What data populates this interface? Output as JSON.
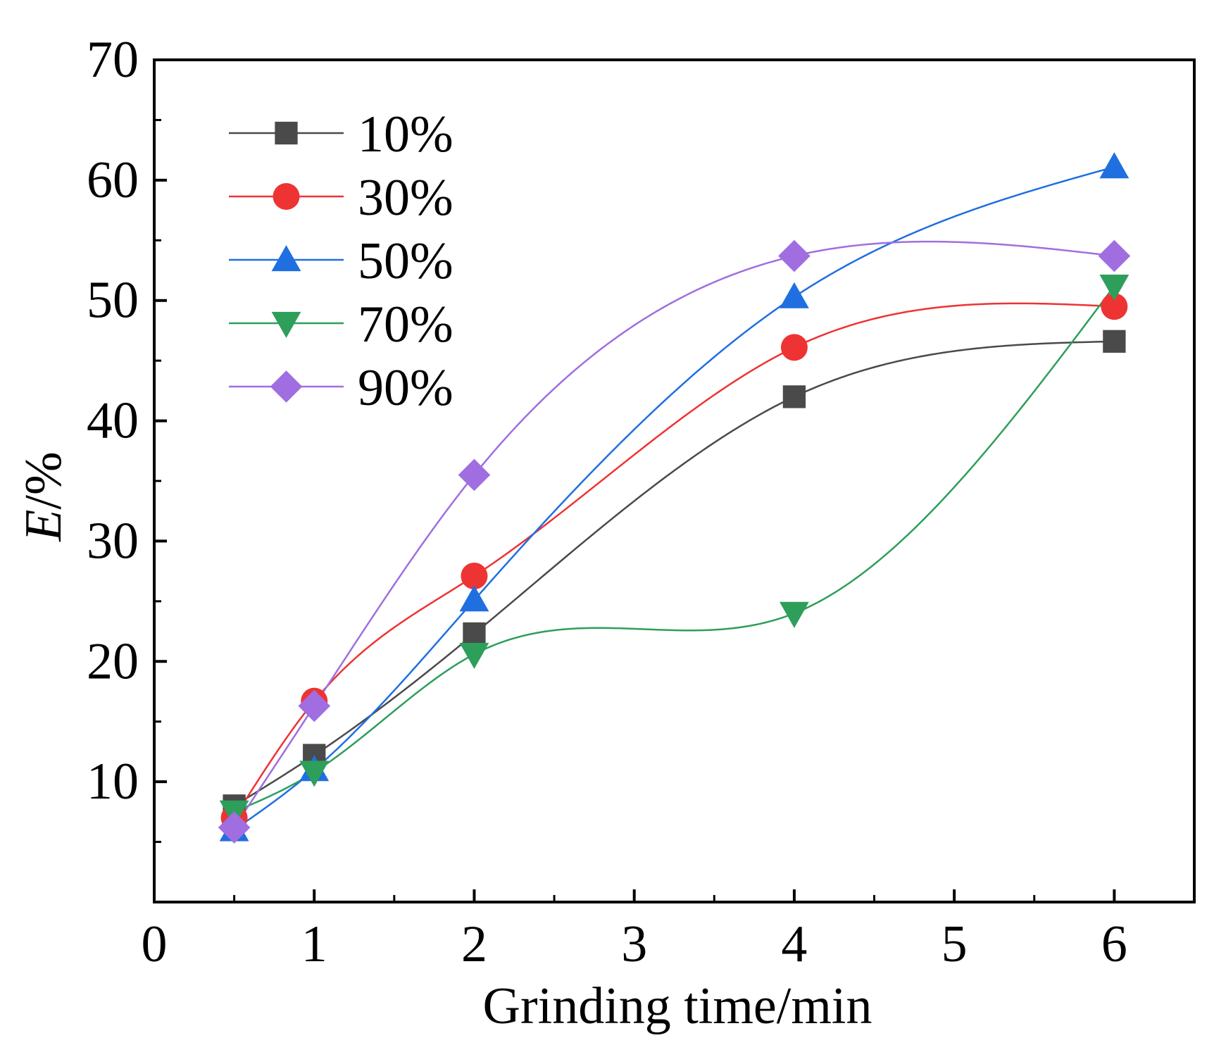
{
  "chart_data": {
    "type": "line",
    "smoothed": true,
    "title": "",
    "xlabel": "Grinding time/min",
    "ylabel_italic": "E",
    "ylabel_rest": "/%",
    "xlim": [
      0,
      6.5
    ],
    "ylim": [
      0,
      70
    ],
    "xticks": [
      0,
      1,
      2,
      3,
      4,
      5,
      6
    ],
    "xtick_labels": [
      "0",
      "1",
      "2",
      "3",
      "4",
      "5",
      "6"
    ],
    "yticks": [
      10,
      20,
      30,
      40,
      50,
      60,
      70
    ],
    "ytick_labels": [
      "10",
      "20",
      "30",
      "40",
      "50",
      "60",
      "70"
    ],
    "grid": false,
    "legend_position": "top-left",
    "x": [
      0.5,
      1,
      2,
      4,
      6
    ],
    "series": [
      {
        "name": "10%",
        "marker": "square",
        "color": "#4a4a4a",
        "values": [
          8.0,
          12.2,
          22.3,
          42.0,
          46.6
        ]
      },
      {
        "name": "30%",
        "marker": "circle",
        "color": "#ee3333",
        "values": [
          7.0,
          16.7,
          27.1,
          46.1,
          49.5
        ]
      },
      {
        "name": "50%",
        "marker": "triangle-up",
        "color": "#1f6fe0",
        "values": [
          6.0,
          11.0,
          25.1,
          50.3,
          61.1
        ]
      },
      {
        "name": "70%",
        "marker": "triangle-down",
        "color": "#2e9e5b",
        "values": [
          7.5,
          10.8,
          20.6,
          24.0,
          51.2
        ]
      },
      {
        "name": "90%",
        "marker": "diamond",
        "color": "#a06ee0",
        "values": [
          6.2,
          16.3,
          35.5,
          53.7,
          53.7
        ]
      }
    ]
  }
}
